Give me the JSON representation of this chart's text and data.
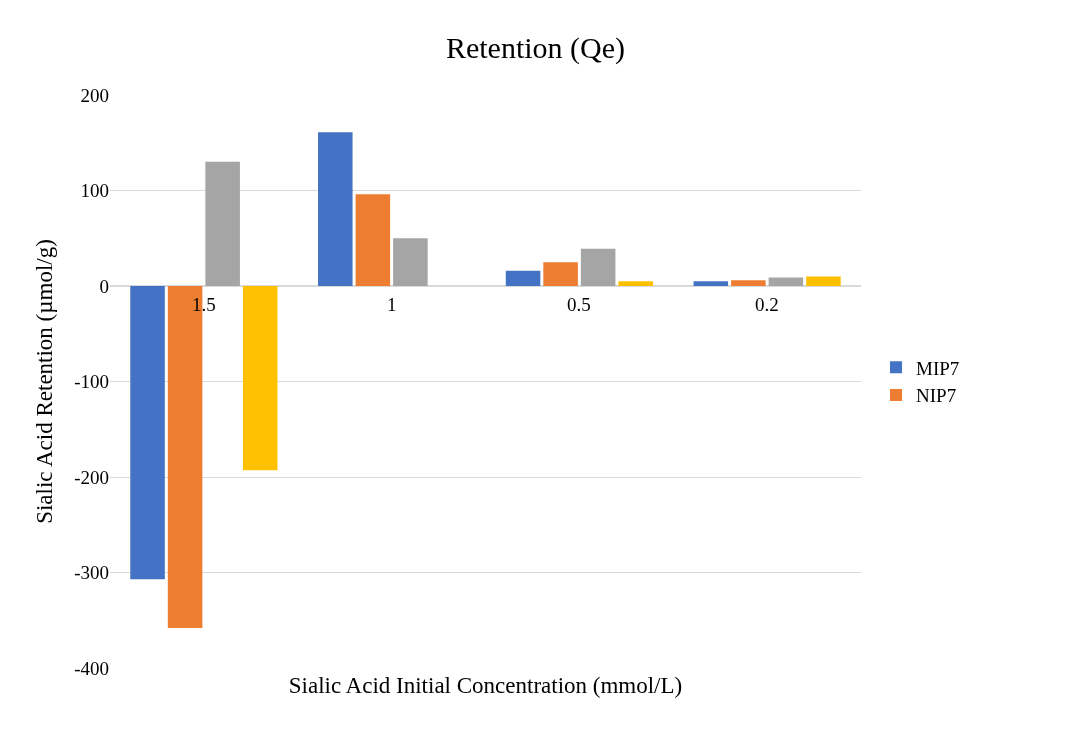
{
  "chart_data": {
    "type": "bar",
    "title": "Retention (Qe)",
    "xlabel": "Sialic Acid Initial Concentration (mmol/L)",
    "ylabel": "Sialic Acid Retention (µmol/g)",
    "categories": [
      "1.5",
      "1",
      "0.5",
      "0.2"
    ],
    "series": [
      {
        "name": "MIP7",
        "color": "#4472c4",
        "values": [
          -307,
          161,
          16,
          5
        ]
      },
      {
        "name": "NIP7",
        "color": "#ed7d31",
        "values": [
          -358,
          96,
          25,
          6
        ]
      },
      {
        "color": "#a5a5a5",
        "values": [
          130,
          50,
          39,
          9
        ]
      },
      {
        "color": "#ffc000",
        "values": [
          -193,
          0,
          5,
          10
        ]
      }
    ],
    "ylim": [
      -400,
      200
    ],
    "yticks": [
      -400,
      -300,
      -200,
      -100,
      0,
      100,
      200
    ],
    "grid": "y",
    "legend": "right"
  }
}
